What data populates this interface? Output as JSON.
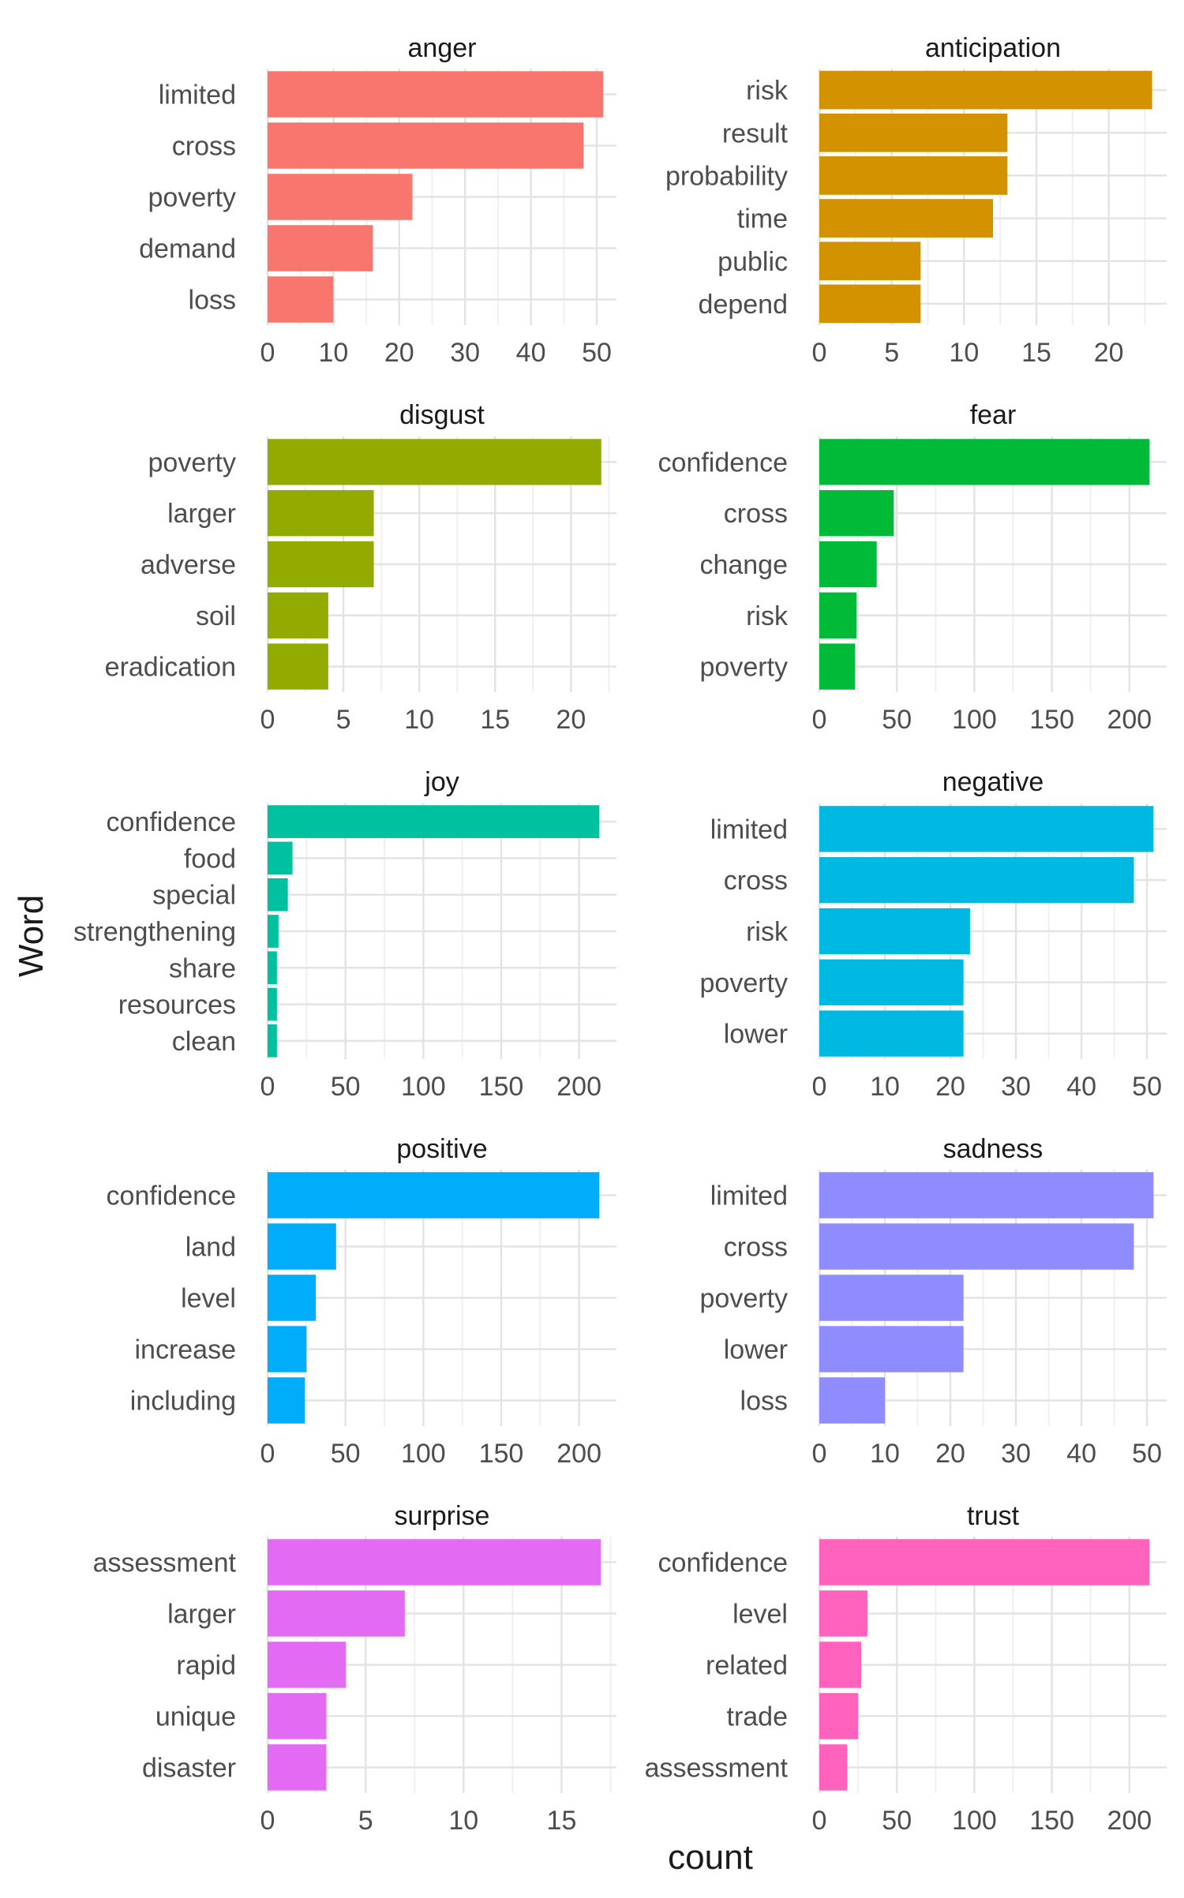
{
  "chart_data": {
    "type": "bar",
    "orientation": "horizontal",
    "layout": "facet-grid",
    "xlabel": "count",
    "ylabel": "Word",
    "grid": true,
    "legend": "none",
    "panels": [
      {
        "title": "anger",
        "color": "#F8766D",
        "xlim": [
          0,
          53
        ],
        "ticks": [
          0,
          10,
          20,
          30,
          40,
          50
        ],
        "categories": [
          "limited",
          "cross",
          "poverty",
          "demand",
          "loss"
        ],
        "values": [
          51,
          48,
          22,
          16,
          10
        ]
      },
      {
        "title": "anticipation",
        "color": "#D39200",
        "xlim": [
          0,
          24
        ],
        "ticks": [
          0,
          5,
          10,
          15,
          20
        ],
        "categories": [
          "risk",
          "result",
          "probability",
          "time",
          "public",
          "depend"
        ],
        "values": [
          23,
          13,
          13,
          12,
          7,
          7
        ]
      },
      {
        "title": "disgust",
        "color": "#93AA00",
        "xlim": [
          0,
          23
        ],
        "ticks": [
          0,
          5,
          10,
          15,
          20
        ],
        "categories": [
          "poverty",
          "larger",
          "adverse",
          "soil",
          "eradication"
        ],
        "values": [
          22,
          7,
          7,
          4,
          4
        ]
      },
      {
        "title": "fear",
        "color": "#00BA38",
        "xlim": [
          0,
          224
        ],
        "ticks": [
          0,
          50,
          100,
          150,
          200
        ],
        "categories": [
          "confidence",
          "cross",
          "change",
          "risk",
          "poverty"
        ],
        "values": [
          213,
          48,
          37,
          24,
          23
        ]
      },
      {
        "title": "joy",
        "color": "#00C19F",
        "xlim": [
          0,
          224
        ],
        "ticks": [
          0,
          50,
          100,
          150,
          200
        ],
        "categories": [
          "confidence",
          "food",
          "special",
          "strengthening",
          "share",
          "resources",
          "clean"
        ],
        "values": [
          213,
          16,
          13,
          7,
          6,
          6,
          6
        ]
      },
      {
        "title": "negative",
        "color": "#00B9E3",
        "xlim": [
          0,
          53
        ],
        "ticks": [
          0,
          10,
          20,
          30,
          40,
          50
        ],
        "categories": [
          "limited",
          "cross",
          "risk",
          "poverty",
          "lower"
        ],
        "values": [
          51,
          48,
          23,
          22,
          22
        ]
      },
      {
        "title": "positive",
        "color": "#00ADFA",
        "xlim": [
          0,
          224
        ],
        "ticks": [
          0,
          50,
          100,
          150,
          200
        ],
        "categories": [
          "confidence",
          "land",
          "level",
          "increase",
          "including"
        ],
        "values": [
          213,
          44,
          31,
          25,
          24
        ]
      },
      {
        "title": "sadness",
        "color": "#8F8CFF",
        "xlim": [
          0,
          53
        ],
        "ticks": [
          0,
          10,
          20,
          30,
          40,
          50
        ],
        "categories": [
          "limited",
          "cross",
          "poverty",
          "lower",
          "loss"
        ],
        "values": [
          51,
          48,
          22,
          22,
          10
        ]
      },
      {
        "title": "surprise",
        "color": "#E36AF2",
        "xlim": [
          0,
          17.8
        ],
        "ticks": [
          0,
          5,
          10,
          15
        ],
        "categories": [
          "assessment",
          "larger",
          "rapid",
          "unique",
          "disaster"
        ],
        "values": [
          17,
          7,
          4,
          3,
          3
        ]
      },
      {
        "title": "trust",
        "color": "#FF62BC",
        "xlim": [
          0,
          224
        ],
        "ticks": [
          0,
          50,
          100,
          150,
          200
        ],
        "categories": [
          "confidence",
          "level",
          "related",
          "trade",
          "assessment"
        ],
        "values": [
          213,
          31,
          27,
          25,
          18
        ]
      }
    ]
  }
}
